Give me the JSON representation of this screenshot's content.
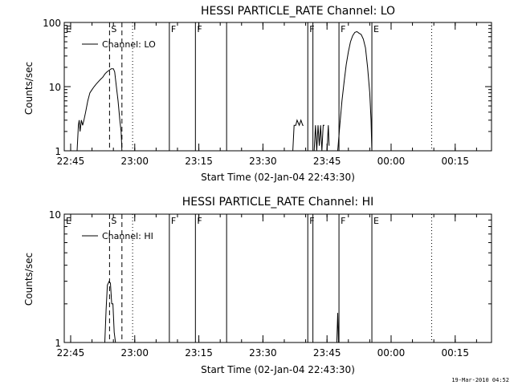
{
  "chart_data": [
    {
      "type": "line",
      "title": "HESSI PARTICLE_RATE Channel: LO",
      "xlabel": "Start Time (02-Jan-04 22:43:30)",
      "ylabel": "Counts/sec",
      "yscale": "log",
      "ylim": [
        1,
        100
      ],
      "xlim_minutes": [
        0,
        100
      ],
      "x_unit": "minutes after 02-Jan-04 22:43:30",
      "x_ticks": [
        {
          "label": "22:45",
          "x": 1.5
        },
        {
          "label": "23:00",
          "x": 16.5
        },
        {
          "label": "23:15",
          "x": 31.5
        },
        {
          "label": "23:30",
          "x": 46.5
        },
        {
          "label": "23:45",
          "x": 61.5
        },
        {
          "label": "00:00",
          "x": 76.5
        },
        {
          "label": "00:15",
          "x": 91.5
        }
      ],
      "y_ticks": [
        {
          "label": "1",
          "y": 1
        },
        {
          "label": "10",
          "y": 10
        },
        {
          "label": "100",
          "y": 100
        }
      ],
      "legend": {
        "entries": [
          "Channel: LO"
        ],
        "placement": "top-left"
      },
      "markers": [
        {
          "label": "E",
          "x": 0,
          "style": "none"
        },
        {
          "label": "S",
          "x": 10.6,
          "style": "dashed"
        },
        {
          "label": "",
          "x": 13.5,
          "style": "dashed"
        },
        {
          "label": "",
          "x": 16.0,
          "style": "dotted"
        },
        {
          "label": "F",
          "x": 24.6,
          "style": "solid"
        },
        {
          "label": "F",
          "x": 30.7,
          "style": "solid"
        },
        {
          "label": "",
          "x": 38.0,
          "style": "solid"
        },
        {
          "label": "F",
          "x": 57.0,
          "style": "solid"
        },
        {
          "label": "",
          "x": 58.2,
          "style": "solid"
        },
        {
          "label": "F",
          "x": 64.3,
          "style": "solid"
        },
        {
          "label": "E",
          "x": 72.0,
          "style": "solid"
        },
        {
          "label": "",
          "x": 86.0,
          "style": "dotted"
        }
      ],
      "series": [
        {
          "name": "Channel: LO",
          "segments": [
            [
              [
                3.0,
                1
              ],
              [
                3.3,
                2.5
              ],
              [
                3.5,
                3
              ],
              [
                3.7,
                2
              ],
              [
                4.0,
                3
              ],
              [
                4.3,
                2.5
              ],
              [
                4.6,
                3
              ],
              [
                5.0,
                4
              ],
              [
                5.5,
                6
              ],
              [
                6.0,
                8
              ],
              [
                6.5,
                9
              ],
              [
                7.0,
                10
              ],
              [
                7.5,
                11
              ],
              [
                8.0,
                12
              ],
              [
                8.5,
                13
              ],
              [
                9.0,
                14
              ],
              [
                9.3,
                15
              ],
              [
                9.6,
                16
              ],
              [
                10.0,
                17
              ],
              [
                10.5,
                18
              ],
              [
                11.0,
                19
              ],
              [
                11.5,
                19
              ],
              [
                11.8,
                17
              ],
              [
                12.2,
                10
              ],
              [
                12.6,
                6
              ],
              [
                13.0,
                3
              ],
              [
                13.3,
                2
              ],
              [
                13.5,
                1
              ]
            ],
            [
              [
                53.5,
                1
              ],
              [
                53.8,
                2.5
              ],
              [
                54.2,
                2.5
              ],
              [
                54.5,
                3
              ],
              [
                55.0,
                2.5
              ],
              [
                55.4,
                3
              ],
              [
                55.8,
                2.5
              ],
              [
                56.0,
                2.5
              ]
            ],
            [
              [
                58.5,
                1
              ],
              [
                58.8,
                2.5
              ],
              [
                59.1,
                1
              ],
              [
                59.4,
                2.5
              ],
              [
                59.7,
                1.2
              ],
              [
                60.0,
                2.5
              ],
              [
                60.3,
                1
              ],
              [
                60.6,
                2.5
              ],
              [
                60.9,
                2.5
              ]
            ],
            [
              [
                61.5,
                1
              ],
              [
                61.8,
                2.5
              ],
              [
                62.0,
                1.2
              ]
            ],
            [
              [
                64.0,
                1
              ],
              [
                64.5,
                2.5
              ],
              [
                65.0,
                6
              ],
              [
                65.5,
                12
              ],
              [
                66.0,
                22
              ],
              [
                66.5,
                35
              ],
              [
                67.0,
                50
              ],
              [
                67.5,
                62
              ],
              [
                68.0,
                70
              ],
              [
                68.5,
                72
              ],
              [
                69.0,
                68
              ],
              [
                69.5,
                65
              ],
              [
                70.0,
                55
              ],
              [
                70.5,
                40
              ],
              [
                71.0,
                20
              ],
              [
                71.5,
                8
              ],
              [
                71.8,
                3
              ],
              [
                72.0,
                1
              ]
            ]
          ]
        }
      ]
    },
    {
      "type": "line",
      "title": "HESSI PARTICLE_RATE Channel: HI",
      "xlabel": "Start Time (02-Jan-04 22:43:30)",
      "ylabel": "Counts/sec",
      "yscale": "log",
      "ylim": [
        1,
        10
      ],
      "xlim_minutes": [
        0,
        100
      ],
      "x_unit": "minutes after 02-Jan-04 22:43:30",
      "x_ticks": [
        {
          "label": "22:45",
          "x": 1.5
        },
        {
          "label": "23:00",
          "x": 16.5
        },
        {
          "label": "23:15",
          "x": 31.5
        },
        {
          "label": "23:30",
          "x": 46.5
        },
        {
          "label": "23:45",
          "x": 61.5
        },
        {
          "label": "00:00",
          "x": 76.5
        },
        {
          "label": "00:15",
          "x": 91.5
        }
      ],
      "y_ticks": [
        {
          "label": "1",
          "y": 1
        },
        {
          "label": "10",
          "y": 10
        }
      ],
      "legend": {
        "entries": [
          "Channel: HI"
        ],
        "placement": "top-left"
      },
      "markers": [
        {
          "label": "E",
          "x": 0,
          "style": "none"
        },
        {
          "label": "S",
          "x": 10.6,
          "style": "dashed"
        },
        {
          "label": "",
          "x": 13.5,
          "style": "dashed"
        },
        {
          "label": "",
          "x": 16.0,
          "style": "dotted"
        },
        {
          "label": "F",
          "x": 24.6,
          "style": "solid"
        },
        {
          "label": "F",
          "x": 30.7,
          "style": "solid"
        },
        {
          "label": "",
          "x": 38.0,
          "style": "solid"
        },
        {
          "label": "F",
          "x": 57.0,
          "style": "solid"
        },
        {
          "label": "",
          "x": 58.2,
          "style": "solid"
        },
        {
          "label": "F",
          "x": 64.3,
          "style": "solid"
        },
        {
          "label": "E",
          "x": 72.0,
          "style": "solid"
        },
        {
          "label": "",
          "x": 86.0,
          "style": "dotted"
        }
      ],
      "series": [
        {
          "name": "Channel: HI",
          "segments": [
            [
              [
                9.5,
                1
              ],
              [
                9.8,
                1.8
              ],
              [
                10.1,
                2.8
              ],
              [
                10.5,
                3
              ],
              [
                10.8,
                2.9
              ],
              [
                11.1,
                2
              ],
              [
                11.4,
                2
              ],
              [
                11.7,
                1.2
              ],
              [
                12.0,
                1
              ]
            ],
            [
              [
                63.8,
                1
              ],
              [
                64.0,
                1.7
              ],
              [
                64.2,
                1
              ]
            ]
          ]
        }
      ]
    }
  ],
  "footer": {
    "timestamp": "19-Mar-2010 04:52"
  }
}
